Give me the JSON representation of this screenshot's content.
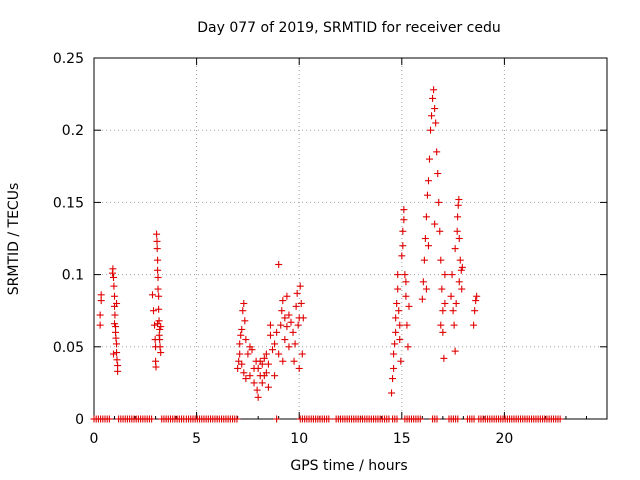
{
  "chart_data": {
    "type": "scatter",
    "title": "Day 077 of 2019, SRMTID for receiver cedu",
    "xlabel": "GPS time / hours",
    "ylabel": "SRMTID / TECUs",
    "xlim": [
      0,
      25
    ],
    "ylim": [
      0,
      0.25
    ],
    "xticks": [
      0,
      5,
      10,
      15,
      20
    ],
    "xtick_labels": [
      "0",
      "5",
      "10",
      "15",
      "20"
    ],
    "yticks": [
      0,
      0.05,
      0.1,
      0.15,
      0.2,
      0.25
    ],
    "ytick_labels": [
      "0",
      "0.05",
      "0.1",
      "0.15",
      "0.2",
      "0.25"
    ],
    "grid": true,
    "marker": "+",
    "series": [
      {
        "name": "SRMTID",
        "color": "#e00000",
        "points": [
          [
            0.3,
            0.065
          ],
          [
            0.3,
            0.072
          ],
          [
            0.35,
            0.082
          ],
          [
            0.35,
            0.086
          ],
          [
            0.9,
            0.101
          ],
          [
            0.92,
            0.104
          ],
          [
            0.95,
            0.098
          ],
          [
            0.97,
            0.092
          ],
          [
            1.0,
            0.085
          ],
          [
            1.0,
            0.078
          ],
          [
            1.02,
            0.072
          ],
          [
            1.05,
            0.064
          ],
          [
            1.05,
            0.06
          ],
          [
            1.07,
            0.056
          ],
          [
            1.1,
            0.052
          ],
          [
            1.1,
            0.046
          ],
          [
            1.12,
            0.041
          ],
          [
            1.15,
            0.037
          ],
          [
            1.15,
            0.033
          ],
          [
            0.95,
            0.045
          ],
          [
            1.0,
            0.066
          ],
          [
            1.1,
            0.08
          ],
          [
            2.85,
            0.086
          ],
          [
            2.9,
            0.075
          ],
          [
            2.95,
            0.065
          ],
          [
            2.98,
            0.055
          ],
          [
            3.0,
            0.05
          ],
          [
            3.0,
            0.04
          ],
          [
            3.02,
            0.036
          ],
          [
            3.05,
            0.128
          ],
          [
            3.07,
            0.123
          ],
          [
            3.08,
            0.118
          ],
          [
            3.1,
            0.11
          ],
          [
            3.1,
            0.103
          ],
          [
            3.12,
            0.098
          ],
          [
            3.12,
            0.09
          ],
          [
            3.15,
            0.085
          ],
          [
            3.15,
            0.076
          ],
          [
            3.17,
            0.068
          ],
          [
            3.2,
            0.062
          ],
          [
            3.2,
            0.055
          ],
          [
            3.22,
            0.05
          ],
          [
            3.25,
            0.046
          ],
          [
            3.25,
            0.064
          ],
          [
            3.1,
            0.066
          ],
          [
            3.18,
            0.058
          ],
          [
            7.0,
            0.035
          ],
          [
            7.05,
            0.04
          ],
          [
            7.1,
            0.045
          ],
          [
            7.1,
            0.052
          ],
          [
            7.15,
            0.058
          ],
          [
            7.2,
            0.062
          ],
          [
            7.2,
            0.038
          ],
          [
            7.25,
            0.075
          ],
          [
            7.3,
            0.08
          ],
          [
            7.3,
            0.032
          ],
          [
            7.35,
            0.068
          ],
          [
            7.4,
            0.055
          ],
          [
            7.4,
            0.028
          ],
          [
            7.5,
            0.045
          ],
          [
            7.6,
            0.05
          ],
          [
            7.6,
            0.03
          ],
          [
            7.7,
            0.048
          ],
          [
            7.8,
            0.035
          ],
          [
            7.8,
            0.025
          ],
          [
            7.9,
            0.04
          ],
          [
            7.95,
            0.02
          ],
          [
            8.0,
            0.035
          ],
          [
            8.0,
            0.015
          ],
          [
            8.1,
            0.04
          ],
          [
            8.1,
            0.03
          ],
          [
            8.2,
            0.038
          ],
          [
            8.2,
            0.025
          ],
          [
            8.3,
            0.042
          ],
          [
            8.3,
            0.03
          ],
          [
            8.4,
            0.045
          ],
          [
            8.4,
            0.032
          ],
          [
            8.5,
            0.038
          ],
          [
            8.5,
            0.022
          ],
          [
            8.6,
            0.058
          ],
          [
            8.6,
            0.065
          ],
          [
            8.7,
            0.048
          ],
          [
            8.8,
            0.052
          ],
          [
            8.9,
            0.06
          ],
          [
            9.0,
            0.045
          ],
          [
            9.0,
            0.107
          ],
          [
            9.1,
            0.065
          ],
          [
            9.15,
            0.075
          ],
          [
            9.2,
            0.082
          ],
          [
            9.3,
            0.07
          ],
          [
            9.3,
            0.055
          ],
          [
            9.4,
            0.064
          ],
          [
            9.5,
            0.072
          ],
          [
            9.5,
            0.05
          ],
          [
            9.6,
            0.067
          ],
          [
            9.7,
            0.06
          ],
          [
            9.75,
            0.04
          ],
          [
            9.8,
            0.052
          ],
          [
            9.85,
            0.078
          ],
          [
            9.9,
            0.087
          ],
          [
            9.95,
            0.065
          ],
          [
            10.0,
            0.07
          ],
          [
            10.0,
            0.035
          ],
          [
            10.05,
            0.092
          ],
          [
            10.1,
            0.08
          ],
          [
            10.15,
            0.045
          ],
          [
            10.2,
            0.07
          ],
          [
            9.2,
            0.04
          ],
          [
            8.8,
            0.03
          ],
          [
            9.4,
            0.085
          ],
          [
            14.5,
            0.018
          ],
          [
            14.55,
            0.028
          ],
          [
            14.6,
            0.035
          ],
          [
            14.6,
            0.045
          ],
          [
            14.65,
            0.052
          ],
          [
            14.7,
            0.06
          ],
          [
            14.7,
            0.07
          ],
          [
            14.75,
            0.08
          ],
          [
            14.8,
            0.09
          ],
          [
            14.8,
            0.1
          ],
          [
            14.85,
            0.075
          ],
          [
            14.9,
            0.065
          ],
          [
            14.9,
            0.055
          ],
          [
            14.95,
            0.04
          ],
          [
            15.0,
            0.113
          ],
          [
            15.05,
            0.12
          ],
          [
            15.05,
            0.13
          ],
          [
            15.1,
            0.138
          ],
          [
            15.1,
            0.145
          ],
          [
            15.15,
            0.1
          ],
          [
            15.2,
            0.085
          ],
          [
            15.2,
            0.095
          ],
          [
            15.25,
            0.065
          ],
          [
            15.3,
            0.05
          ],
          [
            15.35,
            0.078
          ],
          [
            16.0,
            0.083
          ],
          [
            16.05,
            0.095
          ],
          [
            16.1,
            0.11
          ],
          [
            16.15,
            0.125
          ],
          [
            16.2,
            0.14
          ],
          [
            16.25,
            0.155
          ],
          [
            16.3,
            0.165
          ],
          [
            16.35,
            0.18
          ],
          [
            16.4,
            0.2
          ],
          [
            16.45,
            0.21
          ],
          [
            16.5,
            0.222
          ],
          [
            16.55,
            0.228
          ],
          [
            16.6,
            0.215
          ],
          [
            16.65,
            0.205
          ],
          [
            16.7,
            0.185
          ],
          [
            16.75,
            0.17
          ],
          [
            16.8,
            0.15
          ],
          [
            16.85,
            0.13
          ],
          [
            16.9,
            0.11
          ],
          [
            16.95,
            0.09
          ],
          [
            17.0,
            0.075
          ],
          [
            17.0,
            0.06
          ],
          [
            17.05,
            0.042
          ],
          [
            17.1,
            0.08
          ],
          [
            16.3,
            0.12
          ],
          [
            16.6,
            0.135
          ],
          [
            16.2,
            0.09
          ],
          [
            16.9,
            0.065
          ],
          [
            17.1,
            0.1
          ],
          [
            17.4,
            0.085
          ],
          [
            17.45,
            0.1
          ],
          [
            17.5,
            0.075
          ],
          [
            17.55,
            0.065
          ],
          [
            17.6,
            0.047
          ],
          [
            17.65,
            0.08
          ],
          [
            17.7,
            0.13
          ],
          [
            17.72,
            0.14
          ],
          [
            17.75,
            0.148
          ],
          [
            17.78,
            0.152
          ],
          [
            17.8,
            0.125
          ],
          [
            17.85,
            0.11
          ],
          [
            17.9,
            0.103
          ],
          [
            17.92,
            0.09
          ],
          [
            17.95,
            0.105
          ],
          [
            17.6,
            0.118
          ],
          [
            17.8,
            0.095
          ],
          [
            18.5,
            0.065
          ],
          [
            18.55,
            0.075
          ],
          [
            18.6,
            0.082
          ],
          [
            18.65,
            0.085
          ]
        ]
      }
    ],
    "zero_bands_hours": [
      [
        0.0,
        0.85
      ],
      [
        1.2,
        2.85
      ],
      [
        3.3,
        4.4
      ],
      [
        4.5,
        7.0
      ],
      [
        8.9,
        9.0
      ],
      [
        10.05,
        11.5
      ],
      [
        11.8,
        14.4
      ],
      [
        14.55,
        14.85
      ],
      [
        15.15,
        16.0
      ],
      [
        16.5,
        16.75
      ],
      [
        17.3,
        17.8
      ],
      [
        18.2,
        18.6
      ],
      [
        18.75,
        22.8
      ]
    ]
  }
}
